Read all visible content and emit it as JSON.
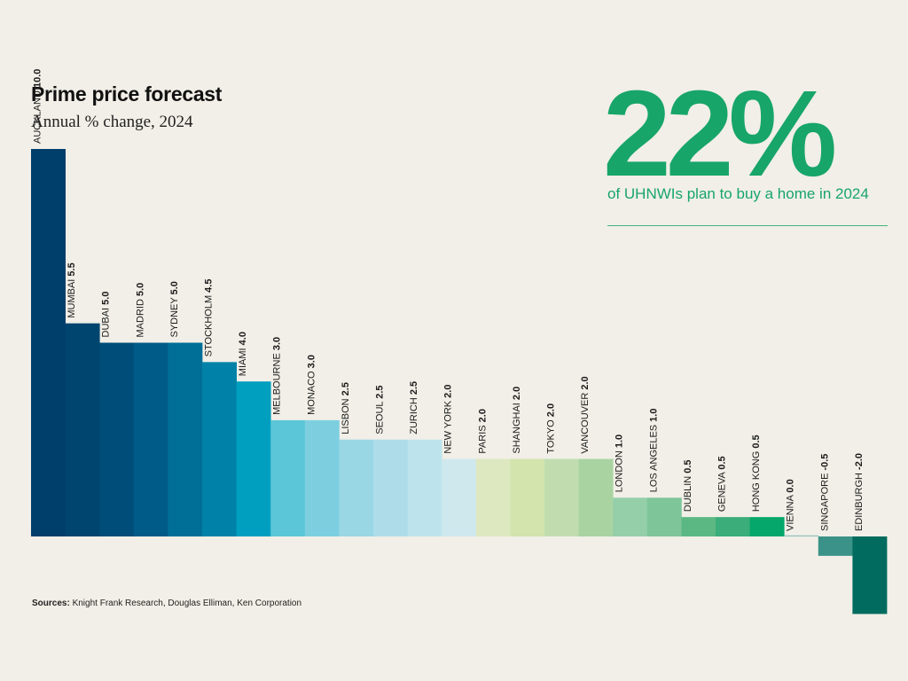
{
  "header": {
    "title": "Prime price forecast",
    "subtitle": "Annual % change, 2024"
  },
  "callout": {
    "stat": "22%",
    "caption": "of UHNWIs plan to buy a home in 2024"
  },
  "footer": {
    "sources_label": "Sources:",
    "sources_text": " Knight Frank Research, Douglas Elliman, Ken Corporation"
  },
  "chart_data": {
    "type": "bar",
    "title": "Prime price forecast",
    "subtitle": "Annual % change, 2024",
    "categories": [
      "AUCKLAND",
      "MUMBAI",
      "DUBAI",
      "MADRID",
      "SYDNEY",
      "STOCKHOLM",
      "MIAMI",
      "MELBOURNE",
      "MONACO",
      "LISBON",
      "SEOUL",
      "ZURICH",
      "NEW YORK",
      "PARIS",
      "SHANGHAI",
      "TOKYO",
      "VANCOUVER",
      "LONDON",
      "LOS ANGELES",
      "DUBLIN",
      "GENEVA",
      "HONG KONG",
      "VIENNA",
      "SINGAPORE",
      "EDINBURGH"
    ],
    "values": [
      10.0,
      5.5,
      5.0,
      5.0,
      5.0,
      4.5,
      4.0,
      3.0,
      3.0,
      2.5,
      2.5,
      2.5,
      2.0,
      2.0,
      2.0,
      2.0,
      2.0,
      1.0,
      1.0,
      0.5,
      0.5,
      0.5,
      0.0,
      -0.5,
      -2.0
    ],
    "value_labels": [
      "10.0",
      "5.5",
      "5.0",
      "5.0",
      "5.0",
      "4.5",
      "4.0",
      "3.0",
      "3.0",
      "2.5",
      "2.5",
      "2.5",
      "2.0",
      "2.0",
      "2.0",
      "2.0",
      "2.0",
      "1.0",
      "1.0",
      "0.5",
      "0.5",
      "0.5",
      "0.0",
      "-0.5",
      "-2.0"
    ],
    "colors": [
      "#003f6b",
      "#00456f",
      "#004d7a",
      "#015b88",
      "#006f98",
      "#0082a8",
      "#009fc0",
      "#5bc6d7",
      "#7dcfe0",
      "#99d7e5",
      "#aedde9",
      "#bde4ec",
      "#cfe8ee",
      "#dde8c0",
      "#d3e4ad",
      "#c1ddb0",
      "#a9d4a2",
      "#94cfa9",
      "#7ec59a",
      "#5bb883",
      "#3aad7a",
      "#05a76a",
      "#8fc1bc",
      "#3b9288",
      "#006b5e"
    ],
    "ylim": [
      -2.0,
      10.0
    ],
    "grid": false,
    "legend": "none",
    "xlabel": "",
    "ylabel": ""
  }
}
